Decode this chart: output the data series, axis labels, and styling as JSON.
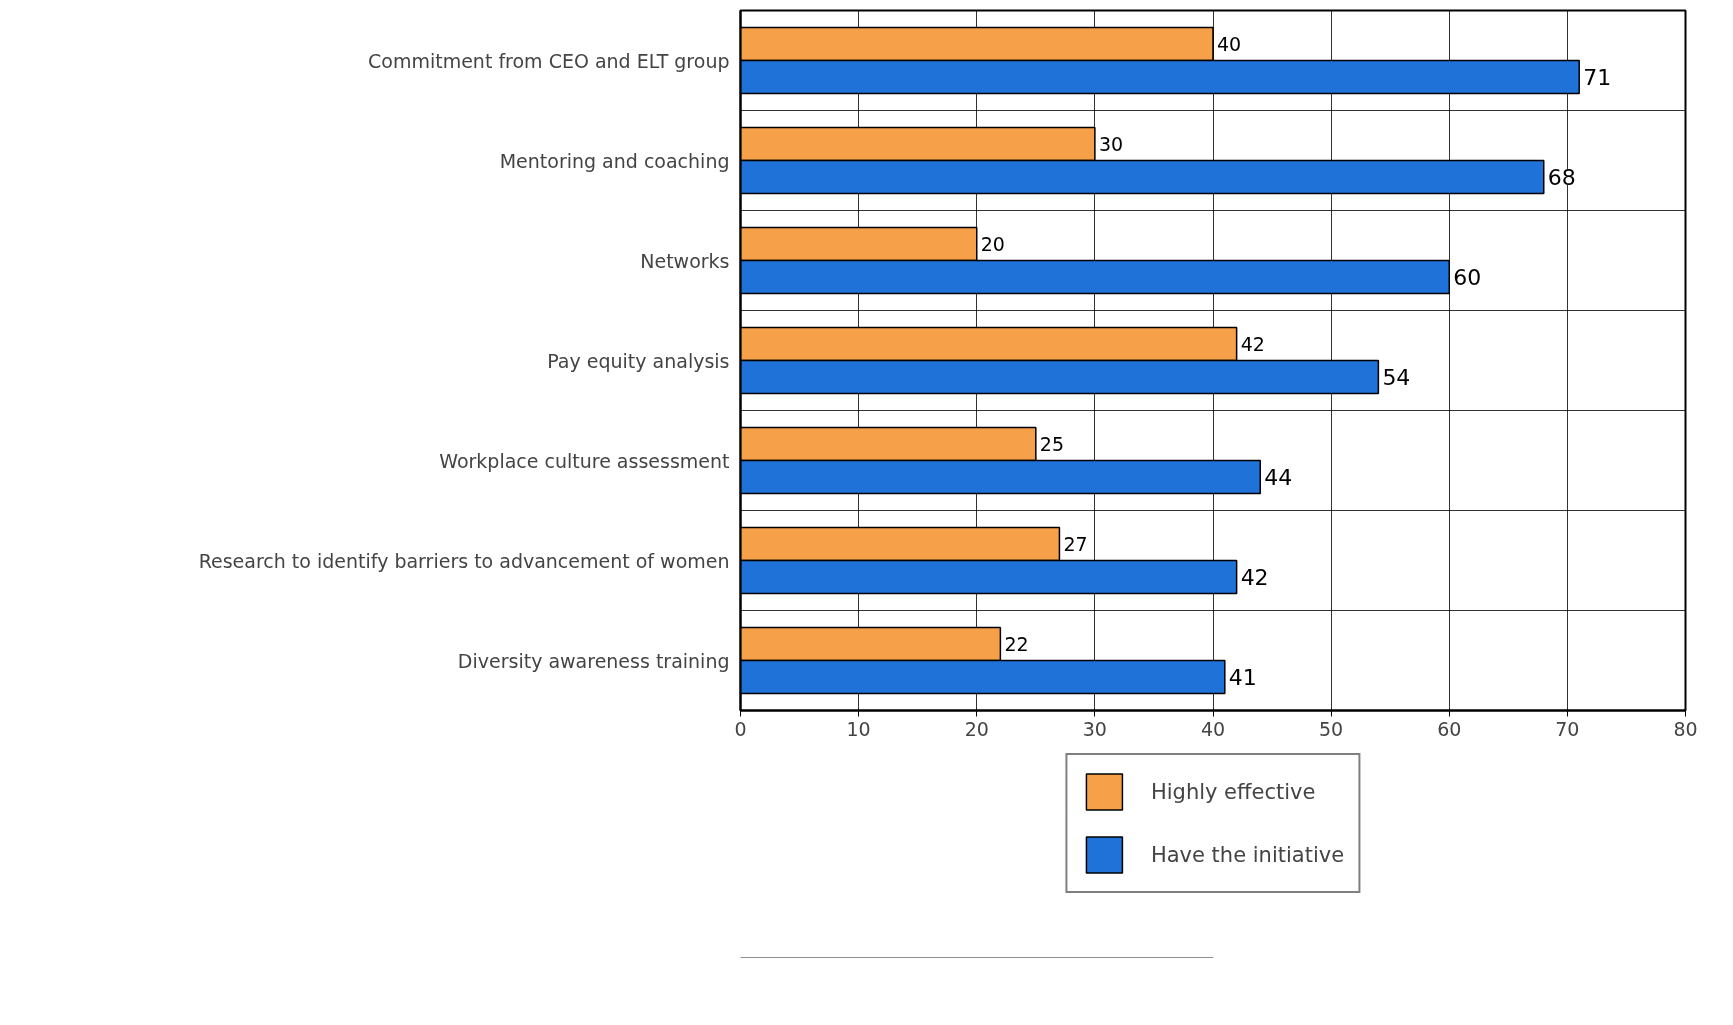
{
  "chart_data": {
    "type": "bar",
    "orientation": "horizontal",
    "categories": [
      "Commitment from CEO and ELT group",
      "Mentoring and coaching",
      "Networks",
      "Pay equity analysis",
      "Workplace culture assessment",
      "Research to identify barriers to advancement of women",
      "Diversity awareness training"
    ],
    "series": [
      {
        "name": "Highly effective",
        "color": "#f7a04a",
        "values": [
          40,
          30,
          20,
          42,
          25,
          27,
          22
        ]
      },
      {
        "name": "Have the initiative",
        "color": "#1f72d8",
        "values": [
          71,
          68,
          60,
          54,
          44,
          42,
          41
        ]
      }
    ],
    "xlim": [
      0,
      80
    ],
    "xticks": [
      0,
      10,
      20,
      30,
      40,
      50,
      60,
      70,
      80
    ],
    "grid": true,
    "legend": "bottom",
    "data_labels": true
  }
}
